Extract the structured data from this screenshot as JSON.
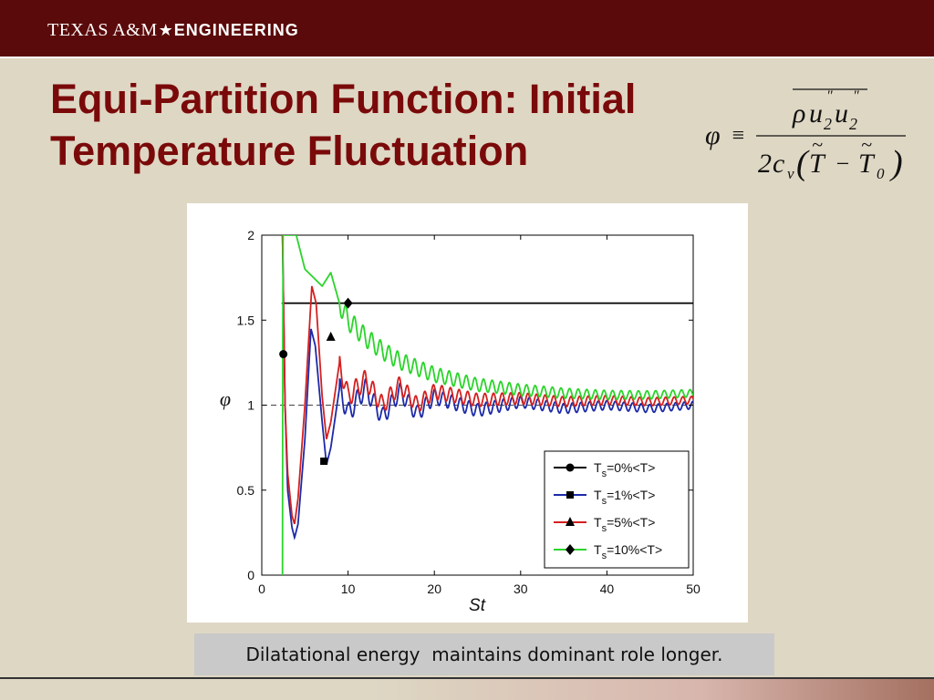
{
  "header": {
    "brand_part1": "TEXAS A&M",
    "brand_star": "★",
    "brand_part2": "ENGINEERING",
    "bg_color": "#5a0a0a"
  },
  "slide": {
    "title_line1": "Equi-Partition Function: Initial",
    "title_line2": "Temperature Fluctuation",
    "title_color": "#7a0a0a"
  },
  "formula": {
    "lhs": "φ",
    "equiv": "≡",
    "numerator_rho": "ρ",
    "numerator_u": "u",
    "numerator_sub": "2",
    "numerator_prime": "\"",
    "denominator_two": "2",
    "denominator_c": "c",
    "denominator_sub_v": "v",
    "T": "T",
    "minus": "−",
    "T0_sub": "0",
    "tilde": "~",
    "paren_open": "(",
    "paren_close": ")"
  },
  "caption": {
    "text": "Dilatational energy  maintains dominant role longer."
  },
  "chart_data": {
    "type": "line",
    "xlabel": "St",
    "ylabel": "φ",
    "xlim": [
      0,
      50
    ],
    "ylim": [
      0,
      2
    ],
    "xticks": [
      "0",
      "10",
      "20",
      "30",
      "40",
      "50"
    ],
    "yticks": [
      "0",
      "0.5",
      "1",
      "1.5",
      "2"
    ],
    "reference_line": 1,
    "legend_position": "bottom-right",
    "legend_labels": [
      {
        "main": "T",
        "sub": "s",
        "rest": "=0%<T>"
      },
      {
        "main": "T",
        "sub": "s",
        "rest": "=1%<T>"
      },
      {
        "main": "T",
        "sub": "s",
        "rest": "=5%<T>"
      },
      {
        "main": "T",
        "sub": "s",
        "rest": "=10%<T>"
      }
    ],
    "series": [
      {
        "name": "Ts=0%<T>",
        "color": "#000000",
        "marker": "circle",
        "x": [
          2.3,
          2.35,
          2.4,
          3,
          50
        ],
        "y": [
          1.6,
          1.6,
          1.6,
          1.6,
          1.6
        ],
        "marker_points": [
          [
            2.5,
            1.3
          ]
        ]
      },
      {
        "name": "Ts=1%<T>",
        "color": "#1c2aa8",
        "marker": "square",
        "x": [
          2.4,
          2.7,
          3,
          3.5,
          3.8,
          4.2,
          5,
          5.7,
          6.2,
          7,
          7.5,
          8,
          9,
          10,
          12,
          14,
          16,
          18,
          20,
          25,
          30,
          35,
          40,
          45,
          50
        ],
        "y": [
          2.0,
          1.0,
          0.5,
          0.28,
          0.22,
          0.3,
          0.8,
          1.45,
          1.35,
          0.9,
          0.65,
          0.75,
          1.1,
          0.95,
          1.1,
          0.93,
          1.08,
          0.95,
          1.05,
          0.97,
          1.02,
          0.98,
          1.0,
          0.98,
          1.0
        ],
        "marker_points": [
          [
            7.2,
            0.67
          ]
        ]
      },
      {
        "name": "Ts=5%<T>",
        "color": "#d42020",
        "marker": "triangle",
        "x": [
          2.4,
          2.7,
          3,
          3.5,
          3.8,
          4.2,
          5,
          5.8,
          6.3,
          7,
          7.5,
          8,
          9,
          10,
          12,
          14,
          16,
          18,
          20,
          25,
          30,
          35,
          40,
          45,
          50
        ],
        "y": [
          2.0,
          1.0,
          0.6,
          0.35,
          0.3,
          0.45,
          1.0,
          1.7,
          1.6,
          1.05,
          0.8,
          0.9,
          1.25,
          1.05,
          1.15,
          1.0,
          1.12,
          1.0,
          1.08,
          1.03,
          1.04,
          1.02,
          1.03,
          1.02,
          1.03
        ],
        "marker_points": [
          [
            8.0,
            1.4
          ]
        ]
      },
      {
        "name": "Ts=10%<T>",
        "color": "#2bd42b",
        "marker": "diamond",
        "x": [
          2.4,
          2.45,
          3,
          4,
          5,
          6,
          7,
          8,
          9,
          10,
          12,
          14,
          16,
          18,
          20,
          25,
          30,
          35,
          40,
          45,
          50
        ],
        "y": [
          0.0,
          2.0,
          2.0,
          2.0,
          1.8,
          1.75,
          1.7,
          1.78,
          1.6,
          1.5,
          1.4,
          1.32,
          1.26,
          1.22,
          1.18,
          1.12,
          1.09,
          1.07,
          1.06,
          1.06,
          1.07
        ],
        "marker_points": [
          [
            10.0,
            1.6
          ]
        ]
      }
    ]
  }
}
